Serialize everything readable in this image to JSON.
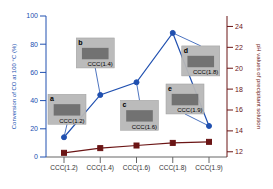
{
  "chart_data": {
    "type": "line",
    "categories": [
      "CCC(1.2)",
      "CCC(1.4)",
      "CCC(1.6)",
      "CCC(1.8)",
      "CCC(1.9)"
    ],
    "series": [
      {
        "color": "#2050b0",
        "values": [
          14,
          44,
          53,
          88,
          22
        ],
        "marker": "circle"
      },
      {
        "color": "#6b1515",
        "values": [
          11.9,
          12.35,
          12.6,
          12.85,
          12.95
        ],
        "marker": "square",
        "axis": "y2"
      }
    ],
    "ylabel": "Conversion of CO at 100 °C (%)",
    "y2label": "pH values of precipitant solution",
    "ylim": [
      0,
      100
    ],
    "yticks": [
      0,
      20,
      40,
      60,
      80,
      100
    ],
    "y2lim": [
      11.5,
      25.0
    ],
    "y2ticks": [
      12,
      14,
      16,
      18,
      20,
      22,
      24
    ],
    "annotations": [
      {
        "label": "a",
        "sublabel": "CCC(1.2)"
      },
      {
        "label": "b",
        "sublabel": "CCC(1.4)"
      },
      {
        "label": "c",
        "sublabel": "CCC(1.6)"
      },
      {
        "label": "d",
        "sublabel": "CCC(1.8)"
      },
      {
        "label": "e",
        "sublabel": "CCC(1.9)"
      }
    ],
    "grid": false
  }
}
